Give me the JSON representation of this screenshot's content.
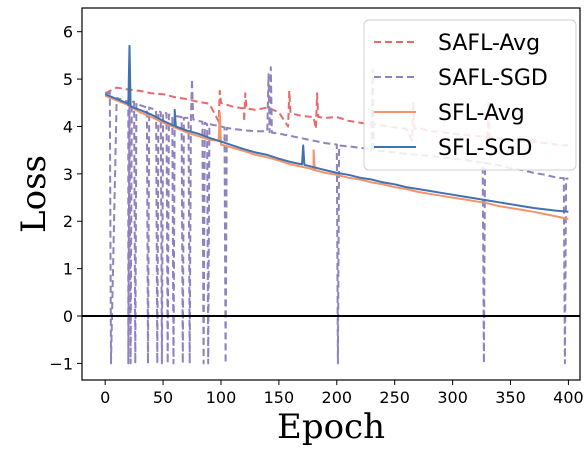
{
  "chart_data": {
    "type": "line",
    "xlabel": "Epoch",
    "ylabel": "Loss",
    "xlim": [
      -20,
      410
    ],
    "ylim": [
      -1.35,
      6.5
    ],
    "xticks": [
      0,
      50,
      100,
      150,
      200,
      250,
      300,
      350,
      400
    ],
    "yticks": [
      -1,
      0,
      1,
      2,
      3,
      4,
      5,
      6
    ],
    "xtick_labels": [
      "0",
      "50",
      "100",
      "150",
      "200",
      "250",
      "300",
      "350",
      "400"
    ],
    "ytick_labels": [
      "−1",
      "0",
      "1",
      "2",
      "3",
      "4",
      "5",
      "6"
    ],
    "reference_line_y": 0,
    "grid": false,
    "legend_position": "top-right",
    "series": [
      {
        "name": "SAFL-Avg",
        "color": "#e8696a",
        "style": "dashed",
        "x": [
          0,
          10,
          20,
          30,
          40,
          50,
          60,
          70,
          80,
          90,
          100,
          110,
          120,
          130,
          140,
          150,
          160,
          170,
          180,
          190,
          200,
          210,
          220,
          230,
          240,
          250,
          260,
          270,
          280,
          290,
          300,
          310,
          320,
          330,
          340,
          350,
          360,
          370,
          380,
          390,
          400
        ],
        "values": [
          4.7,
          4.82,
          4.78,
          4.75,
          4.7,
          4.68,
          4.62,
          4.58,
          4.52,
          4.48,
          4.5,
          4.42,
          4.38,
          4.35,
          4.4,
          4.3,
          4.28,
          4.22,
          4.2,
          4.18,
          4.2,
          4.12,
          4.08,
          4.05,
          4.02,
          3.98,
          3.95,
          3.98,
          3.9,
          3.88,
          3.85,
          3.82,
          3.8,
          3.78,
          3.75,
          3.72,
          3.7,
          3.68,
          3.65,
          3.62,
          3.6
        ]
      },
      {
        "name": "SAFL-SGD",
        "color": "#8f82bd",
        "style": "dashed",
        "x": [
          0,
          10,
          20,
          30,
          40,
          50,
          60,
          70,
          80,
          90,
          100,
          110,
          120,
          130,
          140,
          150,
          160,
          170,
          180,
          190,
          200,
          210,
          220,
          230,
          240,
          250,
          260,
          270,
          280,
          290,
          300,
          310,
          320,
          330,
          340,
          350,
          360,
          370,
          380,
          390,
          400
        ],
        "values": [
          4.7,
          4.6,
          4.52,
          4.45,
          4.38,
          4.3,
          4.22,
          4.18,
          4.12,
          4.05,
          4.0,
          3.95,
          3.92,
          3.9,
          3.9,
          3.85,
          3.8,
          3.75,
          3.7,
          3.65,
          3.62,
          3.58,
          3.55,
          3.52,
          3.48,
          3.45,
          3.42,
          3.4,
          3.38,
          3.35,
          3.32,
          3.3,
          3.25,
          3.22,
          3.18,
          3.12,
          3.08,
          3.02,
          2.98,
          2.92,
          2.9
        ]
      },
      {
        "name": "SFL-Avg",
        "color": "#f4946a",
        "style": "solid",
        "x": [
          0,
          10,
          20,
          30,
          40,
          50,
          60,
          70,
          80,
          90,
          100,
          110,
          120,
          130,
          140,
          150,
          160,
          170,
          180,
          190,
          200,
          210,
          220,
          230,
          240,
          250,
          260,
          270,
          280,
          290,
          300,
          310,
          320,
          330,
          340,
          350,
          360,
          370,
          380,
          390,
          400
        ],
        "values": [
          4.65,
          4.55,
          4.45,
          4.3,
          4.2,
          4.08,
          3.98,
          3.88,
          3.8,
          3.72,
          3.62,
          3.55,
          3.48,
          3.4,
          3.35,
          3.28,
          3.2,
          3.15,
          3.08,
          3.02,
          2.98,
          2.92,
          2.88,
          2.82,
          2.78,
          2.72,
          2.68,
          2.62,
          2.58,
          2.54,
          2.5,
          2.46,
          2.42,
          2.38,
          2.32,
          2.28,
          2.24,
          2.2,
          2.15,
          2.1,
          2.05
        ]
      },
      {
        "name": "SFL-SGD",
        "color": "#3f72b1",
        "style": "solid",
        "x": [
          0,
          10,
          20,
          30,
          40,
          50,
          60,
          70,
          80,
          90,
          100,
          110,
          120,
          130,
          140,
          150,
          160,
          170,
          180,
          190,
          200,
          210,
          220,
          230,
          240,
          250,
          260,
          270,
          280,
          290,
          300,
          310,
          320,
          330,
          340,
          350,
          360,
          370,
          380,
          390,
          400
        ],
        "values": [
          4.68,
          4.58,
          4.48,
          4.35,
          4.25,
          4.12,
          4.02,
          3.92,
          3.85,
          3.76,
          3.68,
          3.6,
          3.52,
          3.45,
          3.4,
          3.32,
          3.25,
          3.2,
          3.14,
          3.08,
          3.02,
          2.98,
          2.92,
          2.88,
          2.82,
          2.78,
          2.72,
          2.68,
          2.64,
          2.6,
          2.56,
          2.52,
          2.48,
          2.44,
          2.4,
          2.36,
          2.32,
          2.28,
          2.25,
          2.22,
          2.2
        ]
      }
    ],
    "spikes": [
      {
        "series": "SAFL-Avg",
        "points": [
          [
            98,
            4.1
          ],
          [
            99,
            4.75
          ],
          [
            100,
            4.5
          ],
          [
            120,
            4.1
          ],
          [
            121,
            4.7
          ],
          [
            122,
            4.38
          ],
          [
            158,
            4.0
          ],
          [
            159,
            4.75
          ],
          [
            160,
            4.28
          ],
          [
            182,
            3.95
          ],
          [
            183,
            4.7
          ],
          [
            184,
            4.2
          ],
          [
            265,
            3.7
          ],
          [
            266,
            4.5
          ],
          [
            267,
            3.95
          ],
          [
            330,
            3.55
          ],
          [
            331,
            4.5
          ],
          [
            332,
            3.78
          ]
        ]
      },
      {
        "series": "SAFL-SGD",
        "points": [
          [
            4,
            4.72
          ],
          [
            5,
            -1.0
          ],
          [
            20,
            -1.0
          ],
          [
            21,
            4.7
          ],
          [
            22,
            -1.0
          ],
          [
            23,
            4.52
          ],
          [
            25,
            4.52
          ],
          [
            26,
            -1.0
          ],
          [
            27,
            4.5
          ],
          [
            36,
            4.4
          ],
          [
            37,
            -1.0
          ],
          [
            38,
            4.4
          ],
          [
            44,
            4.35
          ],
          [
            45,
            -1.0
          ],
          [
            46,
            4.33
          ],
          [
            48,
            4.3
          ],
          [
            49,
            -1.0
          ],
          [
            50,
            4.3
          ],
          [
            53,
            4.28
          ],
          [
            54,
            -1.0
          ],
          [
            55,
            4.25
          ],
          [
            58,
            4.24
          ],
          [
            59,
            -1.0
          ],
          [
            60,
            4.22
          ],
          [
            66,
            4.2
          ],
          [
            67,
            -1.0
          ],
          [
            68,
            4.18
          ],
          [
            72,
            4.18
          ],
          [
            73,
            -1.0
          ],
          [
            74,
            4.15
          ],
          [
            75,
            5.0
          ],
          [
            76,
            4.15
          ],
          [
            84,
            4.1
          ],
          [
            85,
            -1.0
          ],
          [
            86,
            4.08
          ],
          [
            88,
            4.05
          ],
          [
            89,
            -1.0
          ],
          [
            90,
            4.05
          ],
          [
            103,
            3.98
          ],
          [
            104,
            -1.0
          ],
          [
            105,
            3.97
          ],
          [
            140,
            3.9
          ],
          [
            141,
            5.1
          ],
          [
            142,
            3.88
          ],
          [
            143,
            5.25
          ],
          [
            144,
            3.87
          ],
          [
            200,
            3.62
          ],
          [
            201,
            -1.0
          ],
          [
            202,
            3.6
          ],
          [
            230,
            3.5
          ],
          [
            231,
            5.2
          ],
          [
            232,
            3.5
          ],
          [
            326,
            3.24
          ],
          [
            327,
            -1.0
          ],
          [
            328,
            3.23
          ],
          [
            396,
            2.91
          ],
          [
            397,
            -1.0
          ],
          [
            398,
            2.9
          ]
        ]
      },
      {
        "series": "SFL-Avg",
        "points": [
          [
            98,
            3.7
          ],
          [
            99,
            4.3
          ],
          [
            100,
            3.62
          ],
          [
            179,
            3.1
          ],
          [
            180,
            3.5
          ],
          [
            181,
            3.08
          ]
        ]
      },
      {
        "series": "SFL-SGD",
        "points": [
          [
            20,
            4.45
          ],
          [
            21,
            5.7
          ],
          [
            22,
            4.42
          ],
          [
            59,
            4.02
          ],
          [
            60,
            4.35
          ],
          [
            61,
            4.0
          ],
          [
            170,
            3.2
          ],
          [
            171,
            3.6
          ],
          [
            172,
            3.19
          ]
        ]
      }
    ]
  }
}
